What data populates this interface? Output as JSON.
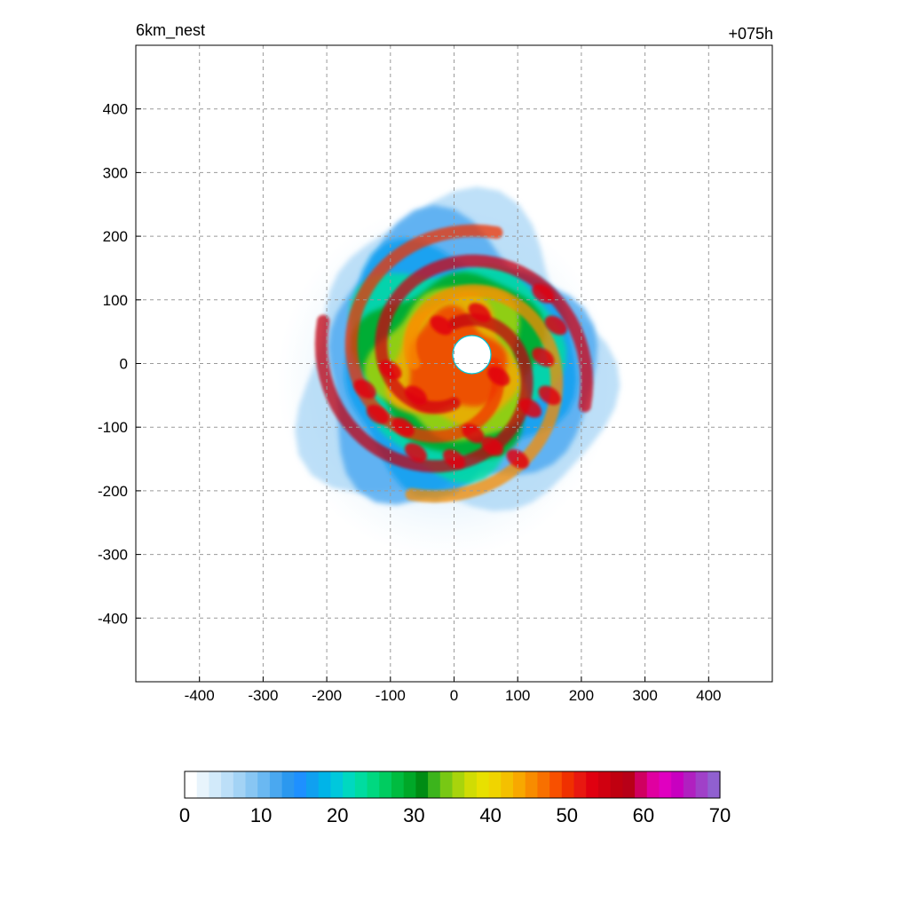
{
  "chart_data": {
    "type": "heatmap",
    "title_left": "6km_nest",
    "title_right": "+075h",
    "xlabel": "",
    "ylabel": "",
    "xlim": [
      -500,
      500
    ],
    "ylim": [
      -500,
      500
    ],
    "x_ticks": [
      -400,
      -300,
      -200,
      -100,
      0,
      100,
      200,
      300,
      400
    ],
    "y_ticks": [
      400,
      300,
      200,
      100,
      0,
      -100,
      -200,
      -300,
      -400
    ],
    "grid": true,
    "grid_style": "dashed",
    "colorbar": {
      "orientation": "horizontal",
      "range": [
        0,
        70
      ],
      "ticks": [
        0,
        10,
        20,
        30,
        40,
        50,
        60,
        70
      ],
      "colors": [
        "#ffffff",
        "#e8f4fc",
        "#d2eafa",
        "#bcdff8",
        "#a3d3f5",
        "#88c6f3",
        "#6ab8f2",
        "#4aa8f0",
        "#2b98ef",
        "#1e90ff",
        "#10a0f0",
        "#00b4e8",
        "#00c8dc",
        "#00d8c0",
        "#00dca0",
        "#00d880",
        "#00cc60",
        "#00bc40",
        "#00a828",
        "#008c14",
        "#3cb41c",
        "#78c814",
        "#a8d40c",
        "#d0dc04",
        "#e8e000",
        "#f0d400",
        "#f4c000",
        "#f8a800",
        "#f88c00",
        "#f87000",
        "#f85000",
        "#f03000",
        "#e81810",
        "#e00010",
        "#d00010",
        "#c00010",
        "#b80018",
        "#d00060",
        "#e000a0",
        "#e000c0",
        "#c800c0",
        "#b020c0",
        "#a040c8",
        "#9060d0"
      ]
    },
    "description_fields": {
      "center": [
        0,
        0
      ],
      "eye_radius_km": 30,
      "max_value": 60
    }
  }
}
